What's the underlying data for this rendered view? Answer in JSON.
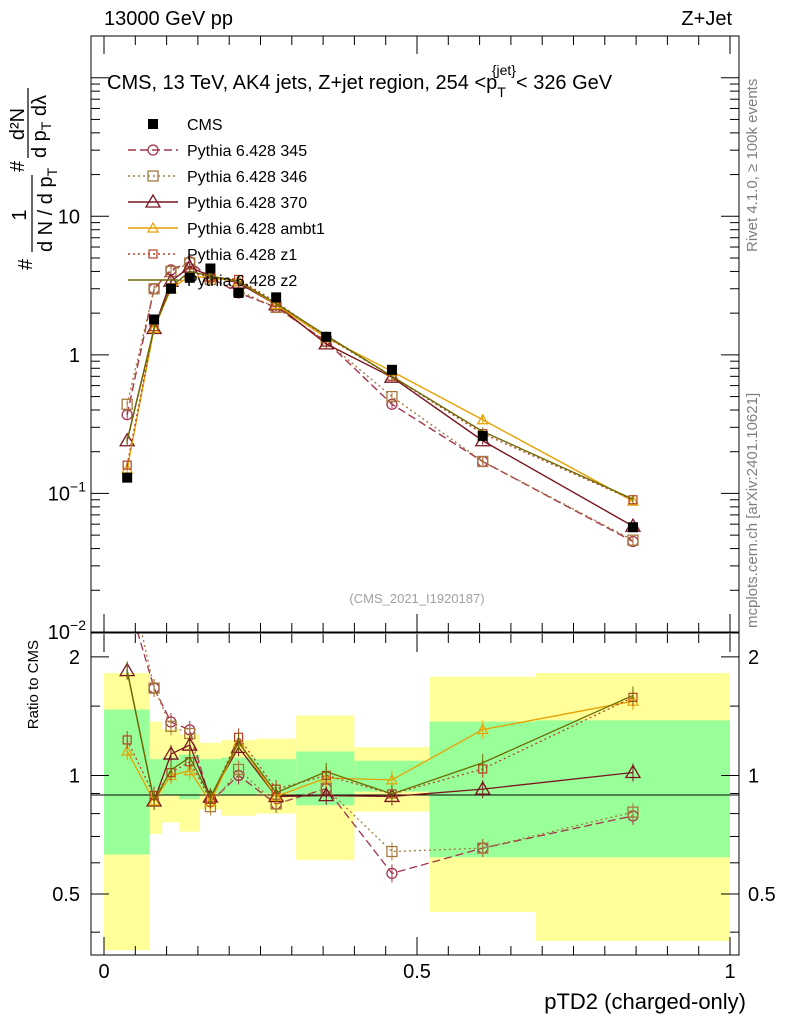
{
  "header": {
    "left": "13000 GeV pp",
    "right": "Z+Jet"
  },
  "side_labels": {
    "rivet": "Rivet 4.1.0, ≥ 100k events",
    "mcplots": "mcplots.cern.ch [arXiv:2401.10621]"
  },
  "colors": {
    "cms": "#000000",
    "p345": "#a3334a",
    "p346": "#a57a3b",
    "p370": "#7a1520",
    "ambt1": "#e8a000",
    "z1": "#b54020",
    "z2": "#6b6b00",
    "band_yellow": "#ffff99",
    "band_green": "#99ff99"
  },
  "chart_data": {
    "type": "line",
    "title": "CMS, 13 TeV, AK4 jets, Z+jet region, 254 <p_T^{jet}< 326 GeV",
    "title_parts": {
      "prefix": "CMS, 13 TeV, AK4 jets, Z+jet region, 254 <p",
      "sup": "{jet}",
      "sub": "T",
      "suffix": "< 326 GeV"
    },
    "analysis_id": "(CMS_2021_I1920187)",
    "xlabel": "pTD2 (charged-only)",
    "ylabel_parts": {
      "hash": "#",
      "num": "1",
      "den": "d N / d p",
      "den_sub": "T",
      "num2": "d²N",
      "den2": "d p",
      "den2_sub": "T",
      "den2_tail": " dλ"
    },
    "ratio_ylabel": "Ratio to CMS",
    "xlim": [
      0,
      1
    ],
    "ylim": [
      0.01,
      200
    ],
    "ratio_ylim": [
      0.35,
      2.3
    ],
    "x_ticks": [
      0,
      0.5,
      1
    ],
    "x_tick_labels": [
      "0",
      "0.5",
      "1"
    ],
    "y_ticks": [
      0.01,
      0.1,
      1,
      10
    ],
    "y_tick_labels": [
      {
        "base": "10",
        "exp": "−2"
      },
      {
        "base": "10",
        "exp": "−1"
      },
      {
        "base": "1",
        "exp": ""
      },
      {
        "base": "10",
        "exp": ""
      }
    ],
    "ratio_ticks": [
      0.5,
      1,
      2
    ],
    "ratio_tick_labels": [
      "0.5",
      "1",
      "2"
    ],
    "x": [
      0.037,
      0.08,
      0.107,
      0.137,
      0.17,
      0.215,
      0.275,
      0.355,
      0.46,
      0.605,
      0.845
    ],
    "bin_edges": [
      0.0,
      0.073,
      0.093,
      0.12,
      0.153,
      0.187,
      0.243,
      0.307,
      0.4,
      0.52,
      0.69,
      1.0
    ],
    "cms": [
      0.13,
      1.8,
      3.0,
      3.6,
      4.2,
      2.8,
      2.6,
      1.35,
      0.78,
      0.26,
      0.057
    ],
    "cms_band_yellow": [
      [
        0.36,
        1.82
      ],
      [
        0.71,
        1.37
      ],
      [
        0.76,
        1.31
      ],
      [
        0.72,
        1.27
      ],
      [
        0.82,
        1.21
      ],
      [
        0.79,
        1.23
      ],
      [
        0.8,
        1.24
      ],
      [
        0.61,
        1.42
      ],
      [
        0.81,
        1.18
      ],
      [
        0.45,
        1.78
      ],
      [
        0.38,
        1.82
      ]
    ],
    "cms_band_green": [
      [
        0.63,
        1.47
      ],
      [
        0.9,
        1.1
      ],
      [
        0.89,
        1.11
      ],
      [
        0.87,
        1.13
      ],
      [
        0.9,
        1.1
      ],
      [
        0.89,
        1.11
      ],
      [
        0.9,
        1.1
      ],
      [
        0.84,
        1.15
      ],
      [
        0.91,
        1.09
      ],
      [
        0.62,
        1.37
      ],
      [
        0.62,
        1.38
      ]
    ],
    "series": [
      {
        "name": "Pythia 6.428 345",
        "key": "p345",
        "marker": "circle",
        "dash": "8,4",
        "values": [
          0.37,
          3.0,
          4.1,
          4.7,
          3.6,
          2.8,
          2.2,
          1.25,
          0.44,
          0.17,
          0.045
        ]
      },
      {
        "name": "Pythia 6.428 346",
        "key": "p346",
        "marker": "square",
        "dash": "2,3",
        "values": [
          0.44,
          3.0,
          4.0,
          4.6,
          3.5,
          2.9,
          2.2,
          1.25,
          0.5,
          0.17,
          0.046
        ]
      },
      {
        "name": "Pythia 6.428 370",
        "key": "p370",
        "marker": "triangle",
        "dash": "",
        "values": [
          0.24,
          1.55,
          3.4,
          4.3,
          3.7,
          3.3,
          2.3,
          1.2,
          0.69,
          0.24,
          0.058
        ]
      },
      {
        "name": "Pythia 6.428 ambt1",
        "key": "ambt1",
        "marker": "tri-small",
        "dash": "",
        "values": [
          0.15,
          1.55,
          3.0,
          3.7,
          3.6,
          3.4,
          2.3,
          1.33,
          0.76,
          0.34,
          0.088
        ]
      },
      {
        "name": "Pythia 6.428 z1",
        "key": "z1",
        "marker": "square-small",
        "dash": "2,3",
        "values": [
          0.16,
          1.6,
          3.05,
          3.9,
          3.65,
          3.5,
          2.4,
          1.35,
          0.7,
          0.27,
          0.09
        ]
      },
      {
        "name": "Pythia 6.428 z2",
        "key": "z2",
        "marker": "none",
        "dash": "",
        "values": [
          0.24,
          1.55,
          3.1,
          4.0,
          3.7,
          3.4,
          2.35,
          1.38,
          0.7,
          0.28,
          0.091
        ]
      }
    ],
    "cms_legend": "CMS"
  }
}
